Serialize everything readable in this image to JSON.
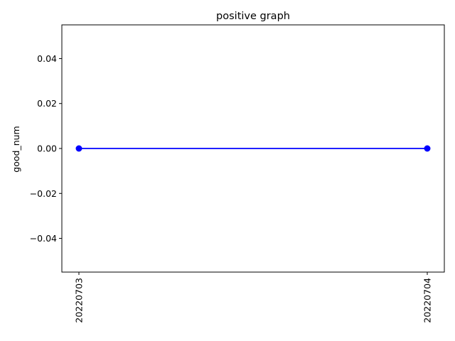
{
  "chart_data": {
    "type": "line",
    "title": "positive graph",
    "xlabel": "",
    "ylabel": "good_num",
    "categories": [
      "20220703",
      "20220704"
    ],
    "series": [
      {
        "values": [
          0,
          0
        ],
        "color": "#0000ff",
        "marker": "circle"
      }
    ],
    "ylim": [
      -0.055,
      0.055
    ],
    "yticks": [
      -0.04,
      -0.02,
      0.0,
      0.02,
      0.04
    ],
    "ytick_labels": [
      "−0.04",
      "−0.02",
      "0.00",
      "0.02",
      "0.04"
    ],
    "xtick_rotation": "vertical",
    "grid": false,
    "legend": "none"
  }
}
